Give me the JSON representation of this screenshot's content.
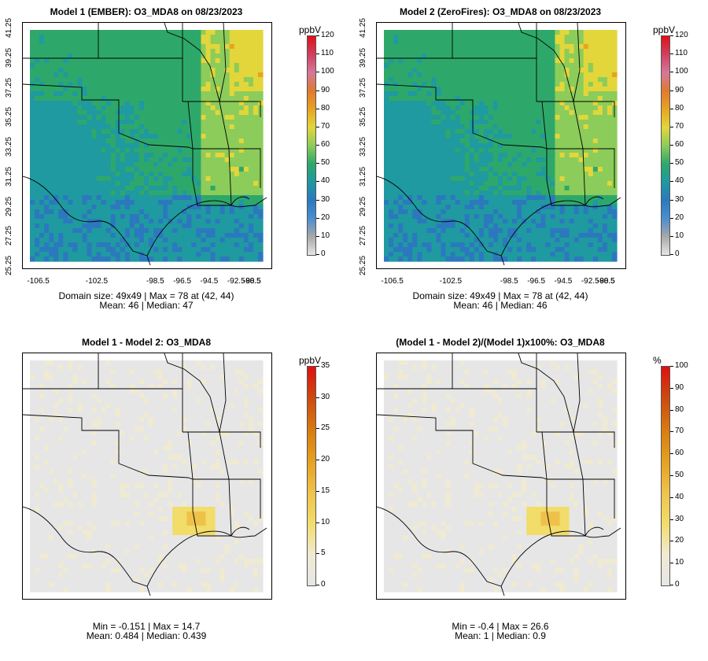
{
  "panels": [
    {
      "title": "Model 1 (EMBER): O3_MDA8 on 08/23/2023",
      "show_axes": true,
      "y_ticks": [
        "25.25",
        "27.25",
        "29.25",
        "31.25",
        "33.25",
        "35.25",
        "37.25",
        "39.25",
        "41.25"
      ],
      "x_ticks": [
        "-106.5",
        "-102.5",
        "-98.5",
        "-96.5",
        "-94.5",
        "-92.5",
        "-90.5",
        "-88.5"
      ],
      "stats_line1": "Domain size: 49x49 | Max = 78 at (42, 44)",
      "stats_line2": "Mean: 46 |  Median: 47",
      "field": "abs",
      "colorbar": {
        "unit": "ppbV",
        "ticks": [
          "0",
          "10",
          "20",
          "30",
          "40",
          "50",
          "60",
          "70",
          "80",
          "90",
          "100",
          "110",
          "120"
        ]
      }
    },
    {
      "title": "Model 2 (ZeroFires): O3_MDA8 on 08/23/2023",
      "show_axes": true,
      "y_ticks": [
        "25.25",
        "27.25",
        "29.25",
        "31.25",
        "33.25",
        "35.25",
        "37.25",
        "39.25",
        "41.25"
      ],
      "x_ticks": [
        "-106.5",
        "-102.5",
        "-98.5",
        "-96.5",
        "-94.5",
        "-92.5",
        "-90.5",
        "-88.5"
      ],
      "stats_line1": "Domain size: 49x49 | Max = 78 at (42, 44)",
      "stats_line2": "Mean: 46 |  Median: 46",
      "field": "abs",
      "colorbar": {
        "unit": "ppbV",
        "ticks": [
          "0",
          "10",
          "20",
          "30",
          "40",
          "50",
          "60",
          "70",
          "80",
          "90",
          "100",
          "110",
          "120"
        ]
      }
    },
    {
      "title": "Model 1 - Model 2: O3_MDA8",
      "show_axes": false,
      "y_ticks": [],
      "x_ticks": [],
      "stats_line1": "Min = -0.151 | Max = 14.7",
      "stats_line2": "Mean: 0.484 |  Median: 0.439",
      "field": "diff",
      "colorbar": {
        "unit": "ppbV",
        "ticks": [
          "0",
          "5",
          "10",
          "15",
          "20",
          "25",
          "30",
          "35"
        ]
      }
    },
    {
      "title": "(Model 1 - Model 2)/(Model 1)x100%: O3_MDA8",
      "show_axes": false,
      "y_ticks": [],
      "x_ticks": [],
      "stats_line1": "Min = -0.4 | Max = 26.6",
      "stats_line2": "Mean: 1 |  Median: 0.9",
      "field": "diff",
      "colorbar": {
        "unit": "%",
        "ticks": [
          "0",
          "10",
          "20",
          "30",
          "40",
          "50",
          "60",
          "70",
          "80",
          "90",
          "100"
        ]
      }
    }
  ],
  "colors": {
    "abs_scale": [
      "#e6e6e6",
      "#a8a8a8",
      "#4a8fd0",
      "#2c78bf",
      "#1f9aa0",
      "#2ea86a",
      "#8ccc5a",
      "#e2d63a",
      "#e8a322",
      "#e07a30",
      "#d4789a",
      "#d04060",
      "#e0101a"
    ],
    "diff_scale": [
      "#e6e6e6",
      "#f0ead0",
      "#f2dc6a",
      "#eec24a",
      "#e5a020",
      "#d87a10",
      "#cc4a10",
      "#e01010"
    ],
    "background_field": "#e6e6e6",
    "boundary": "#000000"
  }
}
